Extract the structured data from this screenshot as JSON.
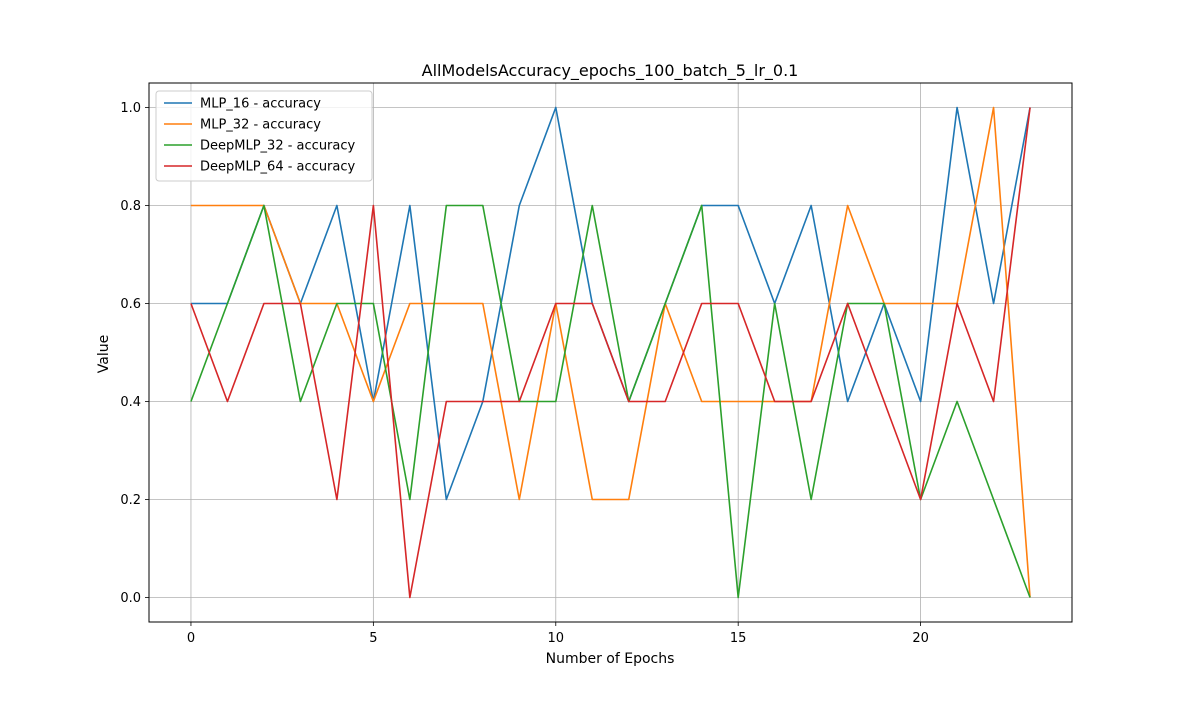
{
  "chart_data": {
    "type": "line",
    "title": "AllModelsAccuracy_epochs_100_batch_5_lr_0.1",
    "xlabel": "Number of Epochs",
    "ylabel": "Value",
    "xlim": [
      -1.15,
      24.15
    ],
    "ylim": [
      -0.05,
      1.05
    ],
    "xticks": [
      0,
      5,
      10,
      15,
      20
    ],
    "yticks": [
      0.0,
      0.2,
      0.4,
      0.6,
      0.8,
      1.0
    ],
    "xtick_labels": [
      "0",
      "5",
      "10",
      "15",
      "20"
    ],
    "ytick_labels": [
      "0.0",
      "0.2",
      "0.4",
      "0.6",
      "0.8",
      "1.0"
    ],
    "grid": true,
    "legend_position": "top-left",
    "x": [
      0,
      1,
      2,
      3,
      4,
      5,
      6,
      7,
      8,
      9,
      10,
      11,
      12,
      13,
      14,
      15,
      16,
      17,
      18,
      19,
      20,
      21,
      22,
      23
    ],
    "series": [
      {
        "name": "MLP_16 - accuracy",
        "color": "#1f77b4",
        "values": [
          0.6,
          0.6,
          0.8,
          0.6,
          0.8,
          0.4,
          0.8,
          0.2,
          0.4,
          0.8,
          1.0,
          0.6,
          0.4,
          0.6,
          0.8,
          0.8,
          0.6,
          0.8,
          0.4,
          0.6,
          0.4,
          1.0,
          0.6,
          1.0
        ]
      },
      {
        "name": "MLP_32 - accuracy",
        "color": "#ff7f0e",
        "values": [
          0.8,
          0.8,
          0.8,
          0.6,
          0.6,
          0.4,
          0.6,
          0.6,
          0.6,
          0.2,
          0.6,
          0.2,
          0.2,
          0.6,
          0.4,
          0.4,
          0.4,
          0.4,
          0.8,
          0.6,
          0.6,
          0.6,
          1.0,
          0.0
        ]
      },
      {
        "name": "DeepMLP_32 - accuracy",
        "color": "#2ca02c",
        "values": [
          0.4,
          0.6,
          0.8,
          0.4,
          0.6,
          0.6,
          0.2,
          0.8,
          0.8,
          0.4,
          0.4,
          0.8,
          0.4,
          0.6,
          0.8,
          0.0,
          0.6,
          0.2,
          0.6,
          0.6,
          0.2,
          0.4,
          0.2,
          0.0
        ]
      },
      {
        "name": "DeepMLP_64 - accuracy",
        "color": "#d62728",
        "values": [
          0.6,
          0.4,
          0.6,
          0.6,
          0.2,
          0.8,
          0.0,
          0.4,
          0.4,
          0.4,
          0.6,
          0.6,
          0.4,
          0.4,
          0.6,
          0.6,
          0.4,
          0.4,
          0.6,
          0.4,
          0.2,
          0.6,
          0.4,
          1.0
        ]
      }
    ]
  }
}
